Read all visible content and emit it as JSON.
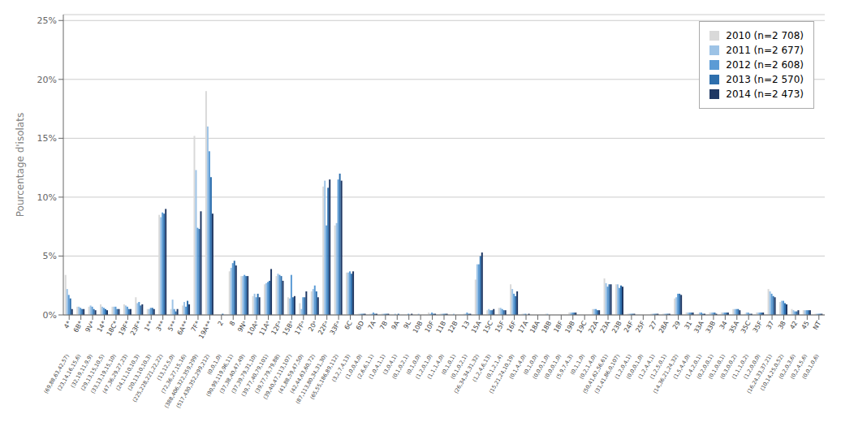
{
  "chart_data": {
    "type": "bar",
    "ylabel": "Pourcentage d'isolats",
    "categories": [
      "4*",
      "6B*",
      "9V*",
      "14*",
      "18C*",
      "19F*",
      "23F*",
      "1**",
      "3**",
      "5**",
      "6A**",
      "7F*",
      "19A**",
      "2",
      "8",
      "9Nᵃ",
      "10Aᵃ",
      "11Aᵃ",
      "12Fᵃ",
      "15Bᵃ",
      "17Fᵃ",
      "20ᵃ",
      "22Fᵃ",
      "33Fᵃ",
      "6C",
      "6D",
      "7A",
      "7B",
      "9A",
      "9L",
      "10B",
      "10F",
      "11B",
      "12B",
      "13",
      "15A",
      "15C",
      "15F",
      "16F",
      "17A",
      "18A",
      "18B",
      "18F",
      "19B",
      "19C",
      "22A",
      "23A",
      "23B",
      "24F",
      "25F",
      "27",
      "28A",
      "29",
      "31",
      "33A",
      "33B",
      "34",
      "35A",
      "35C",
      "35F",
      "37",
      "38",
      "42",
      "45",
      "NT"
    ],
    "annotations": [
      "(69,88,63,42,57)",
      "(23,14,16,15,6)",
      "(32,19,11,9,9)",
      "(29,13,15,10,5)",
      "(33,13,19,15,10)",
      "(47,36,29,27,23)",
      "(24,11,10,10,3)",
      "(20,13,10,10,3)",
      "(225,228,221,22,22)",
      "(13,12,5,0)",
      "(72,36,27,15,16)",
      "(388,406,322,359,299)",
      "(517,430,352,299,212)",
      "(0,0,1,0)",
      "(90,99,119,96,11)",
      "(37,38,40,47,49)",
      "(37,39,79,31,10)",
      "(39,77,40,79,101)",
      "(39,77,79,79,88)",
      "(39,40,47,113,107)",
      "(41,88,59,47,50)",
      "(42,44,63,60,72)",
      "(87,113,80,34,31,30)",
      "(65,55,186,89,112)",
      "(3,2,7,4,13)",
      "(1,0,0,4,0)",
      "(2,6,6,1,1)",
      "(1,0,4,1,1)",
      "(3,0,4,1)",
      "(0,1,0,2,1)",
      "(0,1,0,0)",
      "(1,2,0,1,0)",
      "(1,1,1,4,0)",
      "(0,1,0,1)",
      "(0,1,0,2,1)",
      "(26,34,34,31,32)",
      "(1,2,4,6,13)",
      "(0,1,2,1,4)",
      "(15,21,24,10,19)",
      "(0,1,4,4,0)",
      "(0,1,0,0)",
      "(0,0,0,1,0)",
      "(0,0,0,1,0)",
      "(5,9,7,4,3)",
      "(0,1,1,0)",
      "(0,2,1,4,0)",
      "(50,41,62,56,61)",
      "(31,41,86,0,107)",
      "(1,2,0,4,1)",
      "(0,0,0,1,0)",
      "(1,2,4,4,1)",
      "(1,2,5,0,1)",
      "(14,36,21,24,32)",
      "(1,5,4,4,0)",
      "(1,4,2,0,1)",
      "(0,2,0,0,1)",
      "(0,1,0,0,1)",
      "(0,3,0,0,2)",
      "(1,1,1,0,2)",
      "(1,2,0,0,0)",
      "(16,24,33,37,21)",
      "(10,14,25,0,52)",
      "(0,2,0,3,6)",
      "(0,2,4,5,6)",
      "(0,0,1,0,6)"
    ],
    "series": [
      {
        "name": "2010 (n=2 708)",
        "color": "#d9d9d9",
        "values": [
          3.4,
          0.7,
          0.7,
          0.9,
          0.7,
          0.9,
          1.5,
          0.5,
          8.5,
          0.5,
          0.8,
          15.2,
          19.0,
          0.0,
          3.7,
          3.3,
          1.6,
          2.6,
          3.3,
          1.5,
          1.0,
          2.0,
          10.9,
          7.6,
          3.6,
          0.1,
          0.1,
          0.1,
          0.0,
          0.0,
          0.0,
          0.2,
          0.1,
          0.0,
          0.1,
          3.0,
          0.4,
          0.6,
          2.6,
          0.1,
          0.0,
          0.1,
          0.0,
          0.2,
          0.0,
          0.5,
          3.1,
          2.6,
          0.1,
          0.0,
          0.1,
          0.1,
          1.4,
          0.2,
          0.1,
          0.2,
          0.2,
          0.5,
          0.1,
          0.2,
          2.2,
          1.1,
          0.5,
          0.4,
          0.1
        ]
      },
      {
        "name": "2011 (n=2 677)",
        "color": "#9dc3e6",
        "values": [
          2.2,
          0.7,
          0.8,
          0.7,
          0.7,
          0.8,
          1.0,
          0.5,
          8.3,
          1.3,
          1.1,
          12.3,
          16.0,
          0.0,
          4.0,
          3.3,
          1.8,
          2.7,
          3.5,
          1.4,
          0.5,
          2.2,
          11.4,
          7.8,
          3.6,
          0.1,
          0.1,
          0.1,
          0.1,
          0.0,
          0.1,
          0.1,
          0.1,
          0.1,
          0.1,
          4.3,
          0.5,
          0.6,
          2.2,
          0.1,
          0.0,
          0.1,
          0.0,
          0.2,
          0.0,
          0.5,
          2.7,
          2.6,
          0.1,
          0.0,
          0.1,
          0.1,
          1.5,
          0.2,
          0.2,
          0.2,
          0.2,
          0.5,
          0.2,
          0.2,
          2.0,
          1.2,
          0.4,
          0.4,
          0.1
        ]
      },
      {
        "name": "2012 (n=2 608)",
        "color": "#5b9bd5",
        "values": [
          1.7,
          0.6,
          0.7,
          0.6,
          0.7,
          0.7,
          1.1,
          0.6,
          8.7,
          0.5,
          0.7,
          7.4,
          13.9,
          0.0,
          4.4,
          3.4,
          1.5,
          2.8,
          3.4,
          3.4,
          1.5,
          2.5,
          7.6,
          11.5,
          3.7,
          0.1,
          0.2,
          0.1,
          0.0,
          0.1,
          0.0,
          0.2,
          0.1,
          0.0,
          0.2,
          4.3,
          0.4,
          0.5,
          1.8,
          0.1,
          0.0,
          0.0,
          0.0,
          0.2,
          0.0,
          0.5,
          2.4,
          2.3,
          0.1,
          0.0,
          0.1,
          0.1,
          1.8,
          0.2,
          0.2,
          0.2,
          0.2,
          0.5,
          0.2,
          0.2,
          1.8,
          1.2,
          0.3,
          0.4,
          0.1
        ]
      },
      {
        "name": "2013 (n=2 570)",
        "color": "#2e6fad",
        "values": [
          1.4,
          0.5,
          0.5,
          0.5,
          0.5,
          0.5,
          0.8,
          0.6,
          8.6,
          0.3,
          1.2,
          7.3,
          11.7,
          0.1,
          4.6,
          3.3,
          1.8,
          2.9,
          3.3,
          1.5,
          1.5,
          2.0,
          10.8,
          12.0,
          3.5,
          0.1,
          0.1,
          0.1,
          0.1,
          0.0,
          0.0,
          0.1,
          0.1,
          0.0,
          0.1,
          5.0,
          0.4,
          0.4,
          1.6,
          0.0,
          0.0,
          0.0,
          0.0,
          0.2,
          0.0,
          0.4,
          2.6,
          2.5,
          0.1,
          0.0,
          0.1,
          0.1,
          1.8,
          0.2,
          0.1,
          0.2,
          0.2,
          0.5,
          0.1,
          0.2,
          1.6,
          1.0,
          0.3,
          0.4,
          0.1
        ]
      },
      {
        "name": "2014 (n=2 473)",
        "color": "#1f3864",
        "values": [
          0.5,
          0.5,
          0.4,
          0.4,
          0.5,
          0.5,
          0.9,
          0.5,
          9.0,
          0.5,
          0.9,
          8.8,
          8.6,
          0.0,
          4.2,
          3.3,
          1.5,
          3.9,
          2.9,
          1.6,
          2.0,
          1.5,
          11.5,
          11.4,
          3.7,
          0.1,
          0.1,
          0.1,
          0.0,
          0.1,
          0.0,
          0.1,
          0.1,
          0.0,
          0.1,
          5.3,
          0.5,
          0.4,
          2.0,
          0.1,
          0.0,
          0.0,
          0.0,
          0.2,
          0.0,
          0.4,
          2.6,
          2.4,
          0.1,
          0.0,
          0.1,
          0.1,
          1.7,
          0.2,
          0.1,
          0.1,
          0.2,
          0.4,
          0.1,
          0.2,
          1.5,
          0.9,
          0.4,
          0.4,
          0.1
        ]
      }
    ],
    "ylim": [
      0,
      25.5
    ],
    "yticks": [
      {
        "value": 0,
        "label": "0%"
      },
      {
        "value": 5,
        "label": "5%"
      },
      {
        "value": 10,
        "label": "10%"
      },
      {
        "value": 15,
        "label": "15%"
      },
      {
        "value": 20,
        "label": "20%"
      },
      {
        "value": 25,
        "label": "25%"
      }
    ],
    "grid": true,
    "legend": "upper right"
  }
}
